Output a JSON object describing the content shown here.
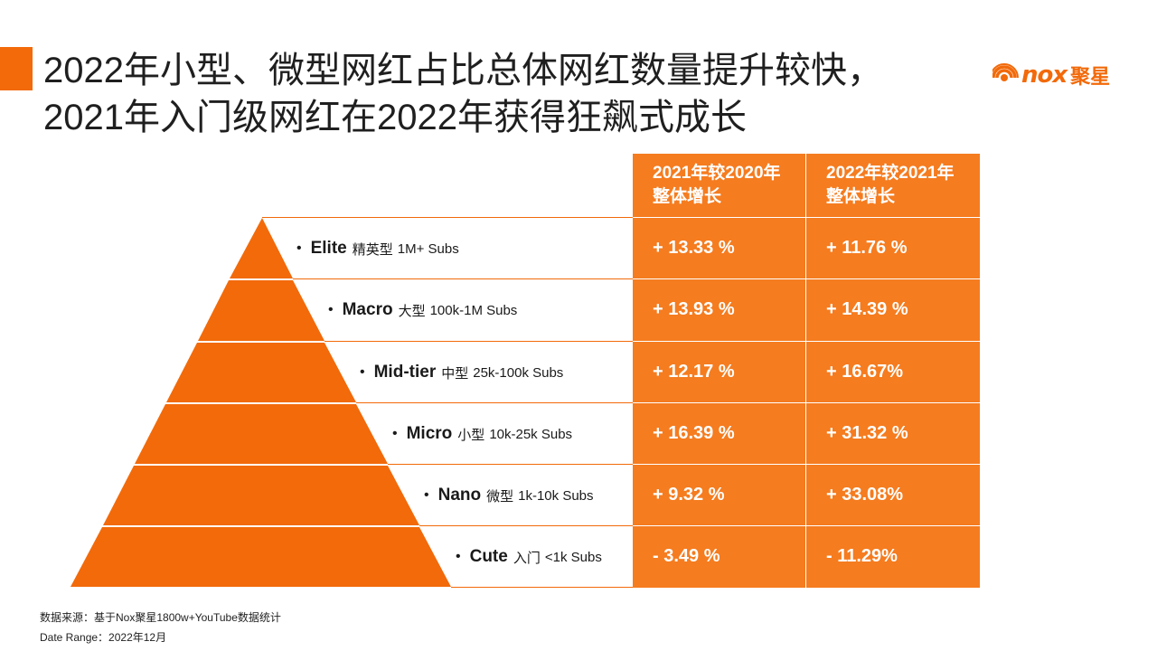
{
  "title": {
    "line1": "2022年小型、微型网红占比总体网红数量提升较快，",
    "line2": "2021年入门级网红在2022年获得狂飙式成长"
  },
  "logo": {
    "text": "nox",
    "cn": "聚星",
    "icon": "wifi-signal-icon"
  },
  "table": {
    "headers": [
      {
        "line1": "2021年较2020年",
        "line2": "整体增长"
      },
      {
        "line1": "2022年较2021年",
        "line2": "整体增长"
      }
    ],
    "rows": [
      {
        "en": "Elite",
        "cn": "精英型",
        "subs": "1M+ Subs",
        "v2021": "+ 13.33 %",
        "v2022": "+ 11.76 %"
      },
      {
        "en": "Macro",
        "cn": "大型",
        "subs": "100k-1M Subs",
        "v2021": "+ 13.93 %",
        "v2022": "+ 14.39 %"
      },
      {
        "en": "Mid-tier",
        "cn": "中型",
        "subs": "25k-100k Subs",
        "v2021": "+ 12.17 %",
        "v2022": "+ 16.67%"
      },
      {
        "en": "Micro",
        "cn": "小型",
        "subs": "10k-25k Subs",
        "v2021": "+ 16.39 %",
        "v2022": "+ 31.32 %"
      },
      {
        "en": "Nano",
        "cn": "微型",
        "subs": "1k-10k Subs",
        "v2021": "+ 9.32 %",
        "v2022": "+ 33.08%"
      },
      {
        "en": "Cute",
        "cn": "入门",
        "subs": "<1k Subs",
        "v2021": "- 3.49 %",
        "v2022": "- 11.29%"
      }
    ]
  },
  "footer": {
    "source": "数据来源：基于Nox聚星1800w+YouTube数据统计",
    "range": "Date Range：2022年12月"
  },
  "colors": {
    "accent": "#f26a0a",
    "table_fill": "#f57c1f",
    "pyramid": "#f26a0a"
  }
}
